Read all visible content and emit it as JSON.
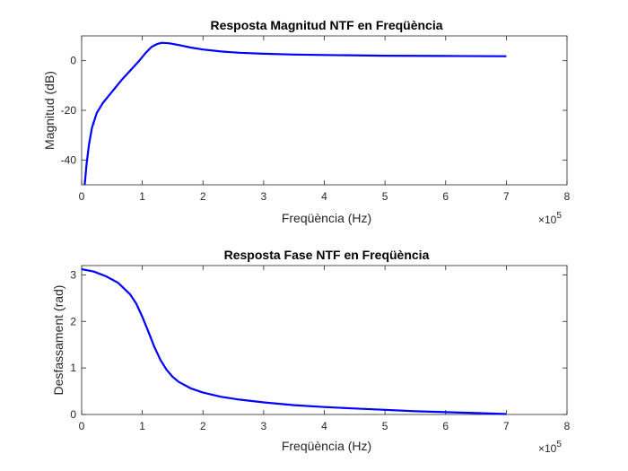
{
  "chart_data": [
    {
      "type": "line",
      "title": "Resposta Magnitud NTF en Freqüència",
      "xlabel": "Freqüència (Hz)",
      "ylabel": "Magnitud (dB)",
      "x_multiplier": {
        "base": "×10",
        "exponent": "5"
      },
      "xlim": [
        0,
        8
      ],
      "ylim": [
        -50,
        10
      ],
      "xticks": [
        "0",
        "1",
        "2",
        "3",
        "4",
        "5",
        "6",
        "7",
        "8"
      ],
      "yticks": [
        "-40",
        "-20",
        "0"
      ],
      "series": [
        {
          "color": "#0000ff",
          "x": [
            0.05,
            0.08,
            0.12,
            0.17,
            0.25,
            0.35,
            0.5,
            0.65,
            0.8,
            0.95,
            1.05,
            1.15,
            1.25,
            1.32,
            1.45,
            1.6,
            1.8,
            2.0,
            2.3,
            2.6,
            3.0,
            3.5,
            4.0,
            5.0,
            6.0,
            7.0
          ],
          "y": [
            -50,
            -42,
            -34,
            -27,
            -21,
            -17,
            -12.5,
            -8,
            -4,
            0,
            3,
            5.5,
            6.8,
            7.2,
            7.0,
            6.3,
            5.3,
            4.5,
            3.7,
            3.2,
            2.8,
            2.5,
            2.3,
            2.0,
            1.9,
            1.8
          ]
        }
      ]
    },
    {
      "type": "line",
      "title": "Resposta Fase NTF en Freqüència",
      "xlabel": "Freqüència (Hz)",
      "ylabel": "Desfassament (rad)",
      "x_multiplier": {
        "base": "×10",
        "exponent": "5"
      },
      "xlim": [
        0,
        8
      ],
      "ylim": [
        0,
        3.2
      ],
      "xticks": [
        "0",
        "1",
        "2",
        "3",
        "4",
        "5",
        "6",
        "7",
        "8"
      ],
      "yticks": [
        "0",
        "1",
        "2",
        "3"
      ],
      "series": [
        {
          "color": "#0000ff",
          "x": [
            0,
            0.2,
            0.4,
            0.6,
            0.8,
            0.9,
            1.0,
            1.1,
            1.2,
            1.3,
            1.4,
            1.5,
            1.6,
            1.8,
            2.0,
            2.3,
            2.6,
            3.0,
            3.5,
            4.0,
            4.5,
            5.0,
            5.5,
            6.0,
            6.5,
            7.0
          ],
          "y": [
            3.12,
            3.07,
            2.97,
            2.83,
            2.58,
            2.38,
            2.1,
            1.78,
            1.45,
            1.17,
            0.96,
            0.81,
            0.7,
            0.56,
            0.47,
            0.38,
            0.32,
            0.26,
            0.2,
            0.16,
            0.13,
            0.1,
            0.07,
            0.05,
            0.03,
            0.01
          ]
        }
      ]
    }
  ]
}
